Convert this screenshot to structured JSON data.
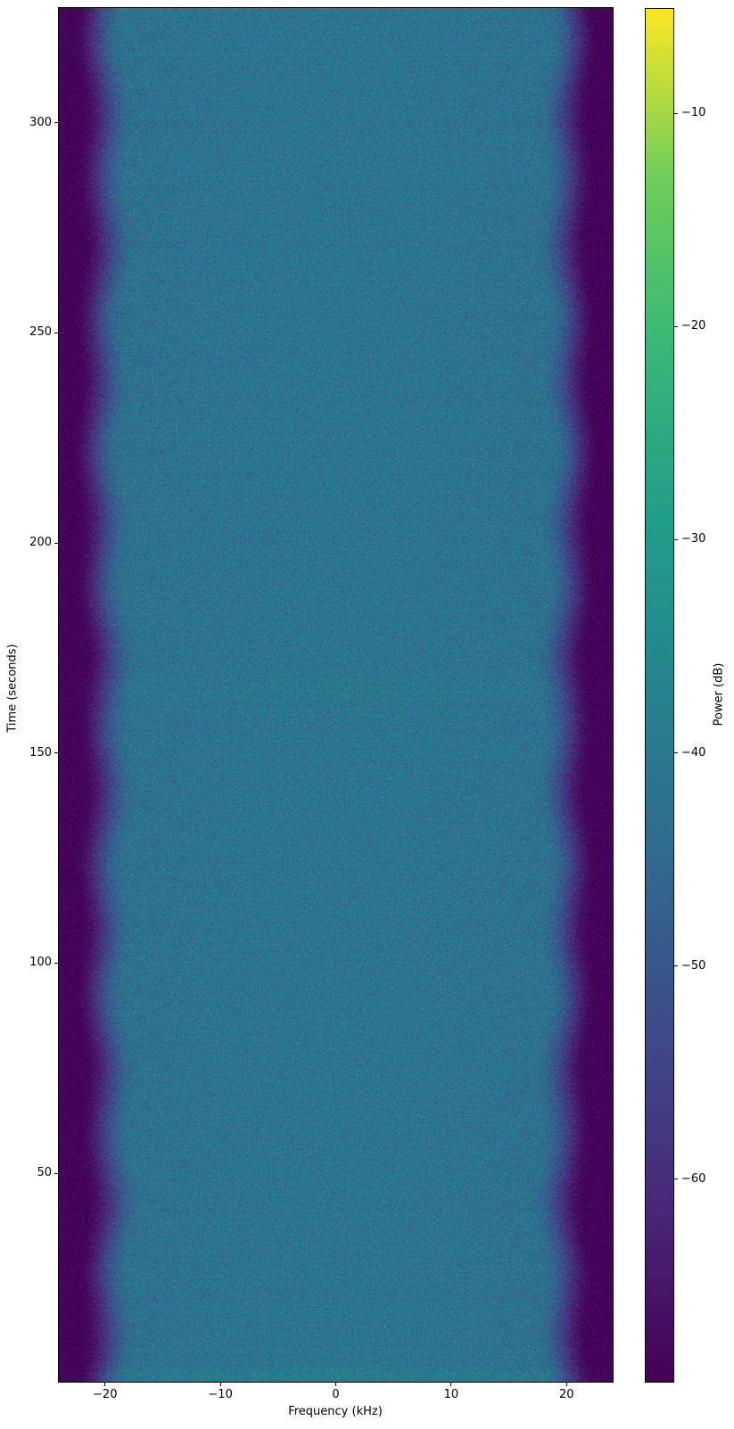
{
  "chart_data": {
    "type": "heatmap",
    "subtype": "spectrogram",
    "title": "",
    "xlabel": "Frequency (kHz)",
    "ylabel": "Time (seconds)",
    "colorbar_label": "Power (dB)",
    "freq_range_khz": [
      -24,
      24
    ],
    "time_range_s": [
      0.4,
      327.3
    ],
    "x_ticks": [
      -20,
      -10,
      0,
      10,
      20
    ],
    "x_tick_labels": [
      "−20",
      "−10",
      "0",
      "10",
      "20"
    ],
    "y_ticks": [
      50,
      100,
      150,
      200,
      250,
      300
    ],
    "y_tick_labels": [
      "50",
      "100",
      "150",
      "200",
      "250",
      "300"
    ],
    "colorbar_ticks": [
      -10,
      -20,
      -30,
      -40,
      -50,
      -60
    ],
    "colorbar_tick_labels": [
      "−10",
      "−20",
      "−30",
      "−40",
      "−50",
      "−60"
    ],
    "power_db_range": [
      -69.5,
      -5.1
    ],
    "colormap": "viridis",
    "colormap_stops": [
      "#440154",
      "#482878",
      "#3e4a89",
      "#31688e",
      "#26828e",
      "#1f9e89",
      "#35b779",
      "#6dcd59",
      "#fde725"
    ],
    "grid": false,
    "legend": "none",
    "signal": {
      "plateau_db": -42.5,
      "center_boost_db": 1.2,
      "floor_db": -69.0,
      "rolloff_start_khz": 17.8,
      "rolloff_end_khz": 22.3,
      "noise_std_db_plateau": 3.2,
      "noise_std_db_floor": 1.3,
      "transition_extra_noise_db": 2.2,
      "row_noise_std_db": 0.45,
      "bands": [
        {
          "time_s": 2.0,
          "half_width_s": 1.6,
          "boost_db": 2.6
        },
        {
          "time_s": 165.0,
          "half_width_s": 3.0,
          "boost_db": 1.0
        }
      ]
    }
  },
  "colors": {
    "background": "#ffffff",
    "text": "#000000",
    "axis": "#000000"
  }
}
